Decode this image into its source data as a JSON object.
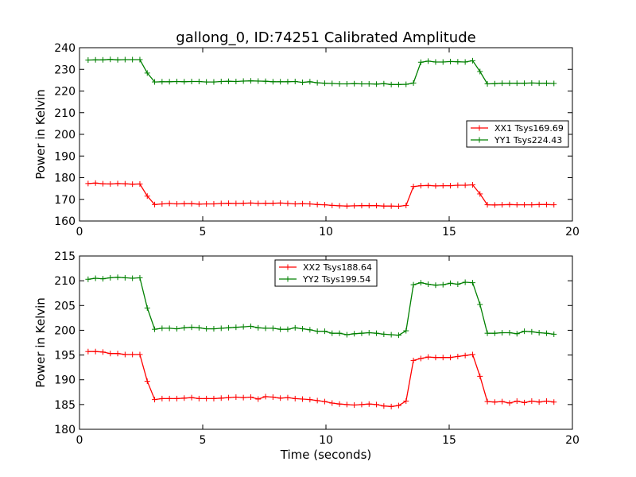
{
  "figure": {
    "title": "gallong_0, ID:74251 Calibrated Amplitude",
    "xlabel": "Time (seconds)"
  },
  "colors": {
    "red": "#ff0000",
    "green": "#008000",
    "axes": "#000000"
  },
  "chart_data": [
    {
      "type": "line",
      "ylabel": "Power in Kelvin",
      "xlim": [
        0,
        20
      ],
      "ylim": [
        160,
        240
      ],
      "xticks": [
        0,
        5,
        10,
        15,
        20
      ],
      "yticks": [
        160,
        170,
        180,
        190,
        200,
        210,
        220,
        230,
        240
      ],
      "legend": "center-right",
      "marker": "+",
      "series": [
        {
          "name": "XX1 Tsys169.69",
          "color": "red",
          "x": [
            0.35,
            0.65,
            0.95,
            1.25,
            1.55,
            1.85,
            2.15,
            2.45,
            2.75,
            3.05,
            3.35,
            3.65,
            3.95,
            4.25,
            4.55,
            4.85,
            5.15,
            5.45,
            5.75,
            6.05,
            6.35,
            6.65,
            6.95,
            7.25,
            7.55,
            7.85,
            8.15,
            8.45,
            8.75,
            9.05,
            9.35,
            9.65,
            9.95,
            10.25,
            10.55,
            10.85,
            11.15,
            11.45,
            11.75,
            12.05,
            12.35,
            12.65,
            12.95,
            13.25,
            13.55,
            13.85,
            14.15,
            14.45,
            14.75,
            15.05,
            15.35,
            15.65,
            15.95,
            16.25,
            16.55,
            16.85,
            17.15,
            17.45,
            17.75,
            18.05,
            18.35,
            18.65,
            18.95,
            19.25
          ],
          "y": [
            177.3,
            177.5,
            177.2,
            177.1,
            177.3,
            177.2,
            177.0,
            177.1,
            171.5,
            167.6,
            167.9,
            168.1,
            167.9,
            168.0,
            168.0,
            167.8,
            167.9,
            167.9,
            168.1,
            168.2,
            168.1,
            168.2,
            168.3,
            168.1,
            168.2,
            168.2,
            168.3,
            168.1,
            167.9,
            168.0,
            167.9,
            167.6,
            167.5,
            167.2,
            167.0,
            166.9,
            167.0,
            167.1,
            167.1,
            167.1,
            166.9,
            166.9,
            166.8,
            167.2,
            175.9,
            176.3,
            176.4,
            176.2,
            176.3,
            176.3,
            176.5,
            176.5,
            176.7,
            172.5,
            167.5,
            167.4,
            167.5,
            167.6,
            167.5,
            167.5,
            167.5,
            167.6,
            167.6,
            167.5
          ]
        },
        {
          "name": "YY1 Tsys224.43",
          "color": "green",
          "x": [
            0.35,
            0.65,
            0.95,
            1.25,
            1.55,
            1.85,
            2.15,
            2.45,
            2.75,
            3.05,
            3.35,
            3.65,
            3.95,
            4.25,
            4.55,
            4.85,
            5.15,
            5.45,
            5.75,
            6.05,
            6.35,
            6.65,
            6.95,
            7.25,
            7.55,
            7.85,
            8.15,
            8.45,
            8.75,
            9.05,
            9.35,
            9.65,
            9.95,
            10.25,
            10.55,
            10.85,
            11.15,
            11.45,
            11.75,
            12.05,
            12.35,
            12.65,
            12.95,
            13.25,
            13.55,
            13.85,
            14.15,
            14.45,
            14.75,
            15.05,
            15.35,
            15.65,
            15.95,
            16.25,
            16.55,
            16.85,
            17.15,
            17.45,
            17.75,
            18.05,
            18.35,
            18.65,
            18.95,
            19.25
          ],
          "y": [
            234.3,
            234.4,
            234.4,
            234.6,
            234.4,
            234.5,
            234.5,
            234.5,
            228.3,
            224.2,
            224.3,
            224.3,
            224.4,
            224.3,
            224.4,
            224.4,
            224.2,
            224.2,
            224.4,
            224.5,
            224.4,
            224.6,
            224.7,
            224.6,
            224.5,
            224.3,
            224.3,
            224.3,
            224.4,
            224.0,
            224.3,
            223.8,
            223.6,
            223.5,
            223.3,
            223.3,
            223.4,
            223.3,
            223.3,
            223.2,
            223.4,
            223.0,
            223.0,
            223.1,
            223.7,
            233.3,
            233.8,
            233.4,
            233.4,
            233.6,
            233.5,
            233.4,
            234.0,
            229.0,
            223.3,
            223.4,
            223.6,
            223.6,
            223.6,
            223.6,
            223.7,
            223.6,
            223.6,
            223.5
          ]
        }
      ]
    },
    {
      "type": "line",
      "ylabel": "Power in Kelvin",
      "xlabel": "Time (seconds)",
      "xlim": [
        0,
        20
      ],
      "ylim": [
        180,
        215
      ],
      "xticks": [
        0,
        5,
        10,
        15,
        20
      ],
      "yticks": [
        180,
        185,
        190,
        195,
        200,
        205,
        210,
        215
      ],
      "legend": "upper-center",
      "marker": "+",
      "series": [
        {
          "name": "XX2 Tsys188.64",
          "color": "red",
          "x": [
            0.35,
            0.65,
            0.95,
            1.25,
            1.55,
            1.85,
            2.15,
            2.45,
            2.75,
            3.05,
            3.35,
            3.65,
            3.95,
            4.25,
            4.55,
            4.85,
            5.15,
            5.45,
            5.75,
            6.05,
            6.35,
            6.65,
            6.95,
            7.25,
            7.55,
            7.85,
            8.15,
            8.45,
            8.75,
            9.05,
            9.35,
            9.65,
            9.95,
            10.25,
            10.55,
            10.85,
            11.15,
            11.45,
            11.75,
            12.05,
            12.35,
            12.65,
            12.95,
            13.25,
            13.55,
            13.85,
            14.15,
            14.45,
            14.75,
            15.05,
            15.35,
            15.65,
            15.95,
            16.25,
            16.55,
            16.85,
            17.15,
            17.45,
            17.75,
            18.05,
            18.35,
            18.65,
            18.95,
            19.25
          ],
          "y": [
            195.7,
            195.7,
            195.6,
            195.3,
            195.3,
            195.1,
            195.1,
            195.1,
            189.7,
            186.0,
            186.2,
            186.2,
            186.2,
            186.3,
            186.4,
            186.2,
            186.2,
            186.2,
            186.3,
            186.4,
            186.5,
            186.4,
            186.5,
            186.1,
            186.6,
            186.5,
            186.3,
            186.4,
            186.2,
            186.1,
            186.0,
            185.8,
            185.6,
            185.3,
            185.1,
            185.0,
            184.9,
            185.0,
            185.1,
            185.0,
            184.7,
            184.6,
            184.8,
            185.7,
            193.9,
            194.3,
            194.6,
            194.5,
            194.5,
            194.5,
            194.7,
            194.9,
            195.1,
            190.7,
            185.6,
            185.5,
            185.6,
            185.3,
            185.7,
            185.4,
            185.7,
            185.5,
            185.7,
            185.5
          ]
        },
        {
          "name": "YY2 Tsys199.54",
          "color": "green",
          "x": [
            0.35,
            0.65,
            0.95,
            1.25,
            1.55,
            1.85,
            2.15,
            2.45,
            2.75,
            3.05,
            3.35,
            3.65,
            3.95,
            4.25,
            4.55,
            4.85,
            5.15,
            5.45,
            5.75,
            6.05,
            6.35,
            6.65,
            6.95,
            7.25,
            7.55,
            7.85,
            8.15,
            8.45,
            8.75,
            9.05,
            9.35,
            9.65,
            9.95,
            10.25,
            10.55,
            10.85,
            11.15,
            11.45,
            11.75,
            12.05,
            12.35,
            12.65,
            12.95,
            13.25,
            13.55,
            13.85,
            14.15,
            14.45,
            14.75,
            15.05,
            15.35,
            15.65,
            15.95,
            16.25,
            16.55,
            16.85,
            17.15,
            17.45,
            17.75,
            18.05,
            18.35,
            18.65,
            18.95,
            19.25
          ],
          "y": [
            210.3,
            210.5,
            210.4,
            210.6,
            210.7,
            210.6,
            210.5,
            210.6,
            204.5,
            200.2,
            200.4,
            200.4,
            200.3,
            200.5,
            200.6,
            200.5,
            200.3,
            200.3,
            200.4,
            200.5,
            200.6,
            200.7,
            200.8,
            200.5,
            200.4,
            200.4,
            200.2,
            200.2,
            200.5,
            200.3,
            200.1,
            199.8,
            199.8,
            199.4,
            199.4,
            199.1,
            199.3,
            199.4,
            199.5,
            199.4,
            199.2,
            199.1,
            199.0,
            199.9,
            209.2,
            209.6,
            209.3,
            209.1,
            209.2,
            209.5,
            209.3,
            209.7,
            209.6,
            205.2,
            199.4,
            199.4,
            199.5,
            199.5,
            199.3,
            199.8,
            199.7,
            199.5,
            199.4,
            199.2
          ]
        }
      ]
    }
  ]
}
